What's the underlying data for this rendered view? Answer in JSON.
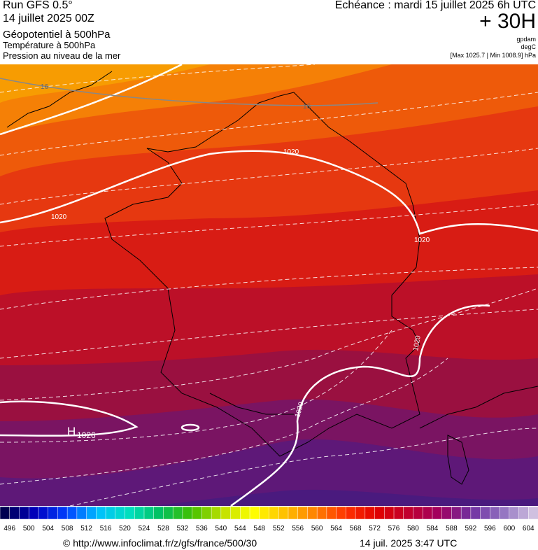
{
  "header": {
    "run": "Run GFS 0.5°",
    "date": "14 juillet 2025 00Z",
    "field": "Géopotentiel à 500hPa",
    "temp": "Température à 500hPa",
    "pressure": "Pression au niveau de la mer",
    "echeance": "Echéance : mardi 15 juillet 2025 6h UTC",
    "lead": "+ 30H",
    "unit1": "gpdam",
    "unit2": "degC",
    "range": "[Max 1025.7 | Min 1008.9] hPa"
  },
  "map": {
    "labels": [
      "16",
      "16",
      "1020",
      "1020",
      "1020",
      "1020",
      "1020",
      "H",
      "1026"
    ]
  },
  "colorbar": {
    "labels": [
      496,
      500,
      504,
      508,
      512,
      516,
      520,
      524,
      528,
      532,
      536,
      540,
      544,
      548,
      552,
      556,
      560,
      564,
      568,
      572,
      576,
      580,
      584,
      588,
      592,
      596,
      600,
      604
    ]
  },
  "footer": {
    "url": "© http://www.infoclimat.fr/z/gfs/france/500/30",
    "time": "14 juil. 2025  3:47 UTC"
  }
}
